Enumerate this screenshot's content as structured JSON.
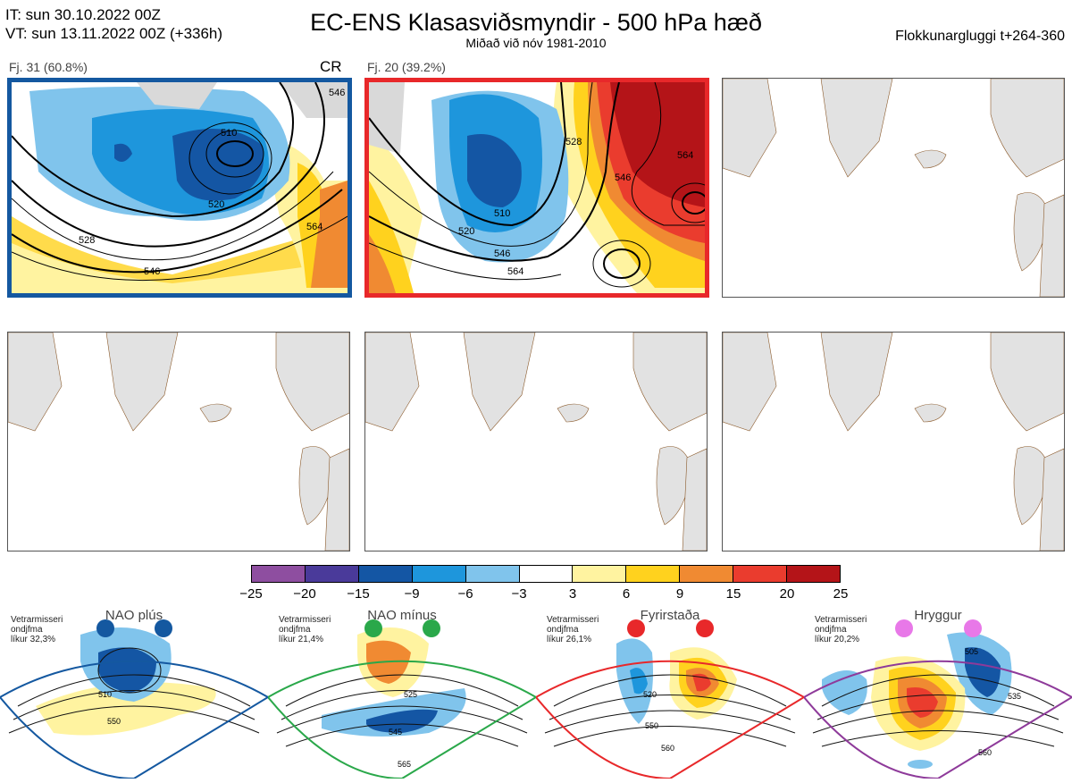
{
  "header": {
    "it_line": "IT: sun 30.10.2022 00Z",
    "vt_line": "VT: sun 13.11.2022 00Z  (+336h)",
    "title": "EC-ENS Klasasviðsmyndir - 500 hPa hæð",
    "subtitle": "Miðað við nóv 1981-2010",
    "window": "Flokkunargluggi t+264-360"
  },
  "panels": [
    {
      "label": "Fj. 31 (60.8%)",
      "tag": "CR",
      "contours": [
        "510",
        "520",
        "528",
        "546",
        "564",
        "546"
      ]
    },
    {
      "label": "Fj. 20 (39.2%)",
      "contours": [
        "510",
        "520",
        "528",
        "546",
        "564",
        "546",
        "564"
      ]
    }
  ],
  "colorbar": {
    "ticks": [
      "−25",
      "−20",
      "−15",
      "−9",
      "−6",
      "−3",
      "3",
      "6",
      "9",
      "15",
      "20",
      "25"
    ],
    "colors": [
      "#8e4ea0",
      "#4a3a9a",
      "#1456a4",
      "#1e96dc",
      "#80c4ec",
      "#ffffff",
      "#fff3a0",
      "#ffd21e",
      "#f08a32",
      "#ea3c2e",
      "#b41418"
    ]
  },
  "regimes": [
    {
      "name": "NAO plús",
      "prob_lines": [
        "Vetrarmisseri",
        "ondjfma",
        "líkur 32,3%"
      ],
      "labels": [
        "510",
        "550"
      ],
      "color": "#1458a0"
    },
    {
      "name": "NAO mínus",
      "prob_lines": [
        "Vetrarmisseri",
        "ondjfma",
        "líkur 21,4%"
      ],
      "labels": [
        "525",
        "545",
        "565"
      ],
      "color": "#2aa84a"
    },
    {
      "name": "Fyrirstaða",
      "prob_lines": [
        "Vetrarmisseri",
        "ondjfma",
        "líkur 26,1%"
      ],
      "labels": [
        "520",
        "550",
        "560"
      ],
      "color": "#e8282a"
    },
    {
      "name": "Hryggur",
      "prob_lines": [
        "Vetrarmisseri",
        "ondjfma",
        "líkur 20,2%"
      ],
      "labels": [
        "505",
        "535",
        "560"
      ],
      "color": "#8e3a9a"
    }
  ]
}
